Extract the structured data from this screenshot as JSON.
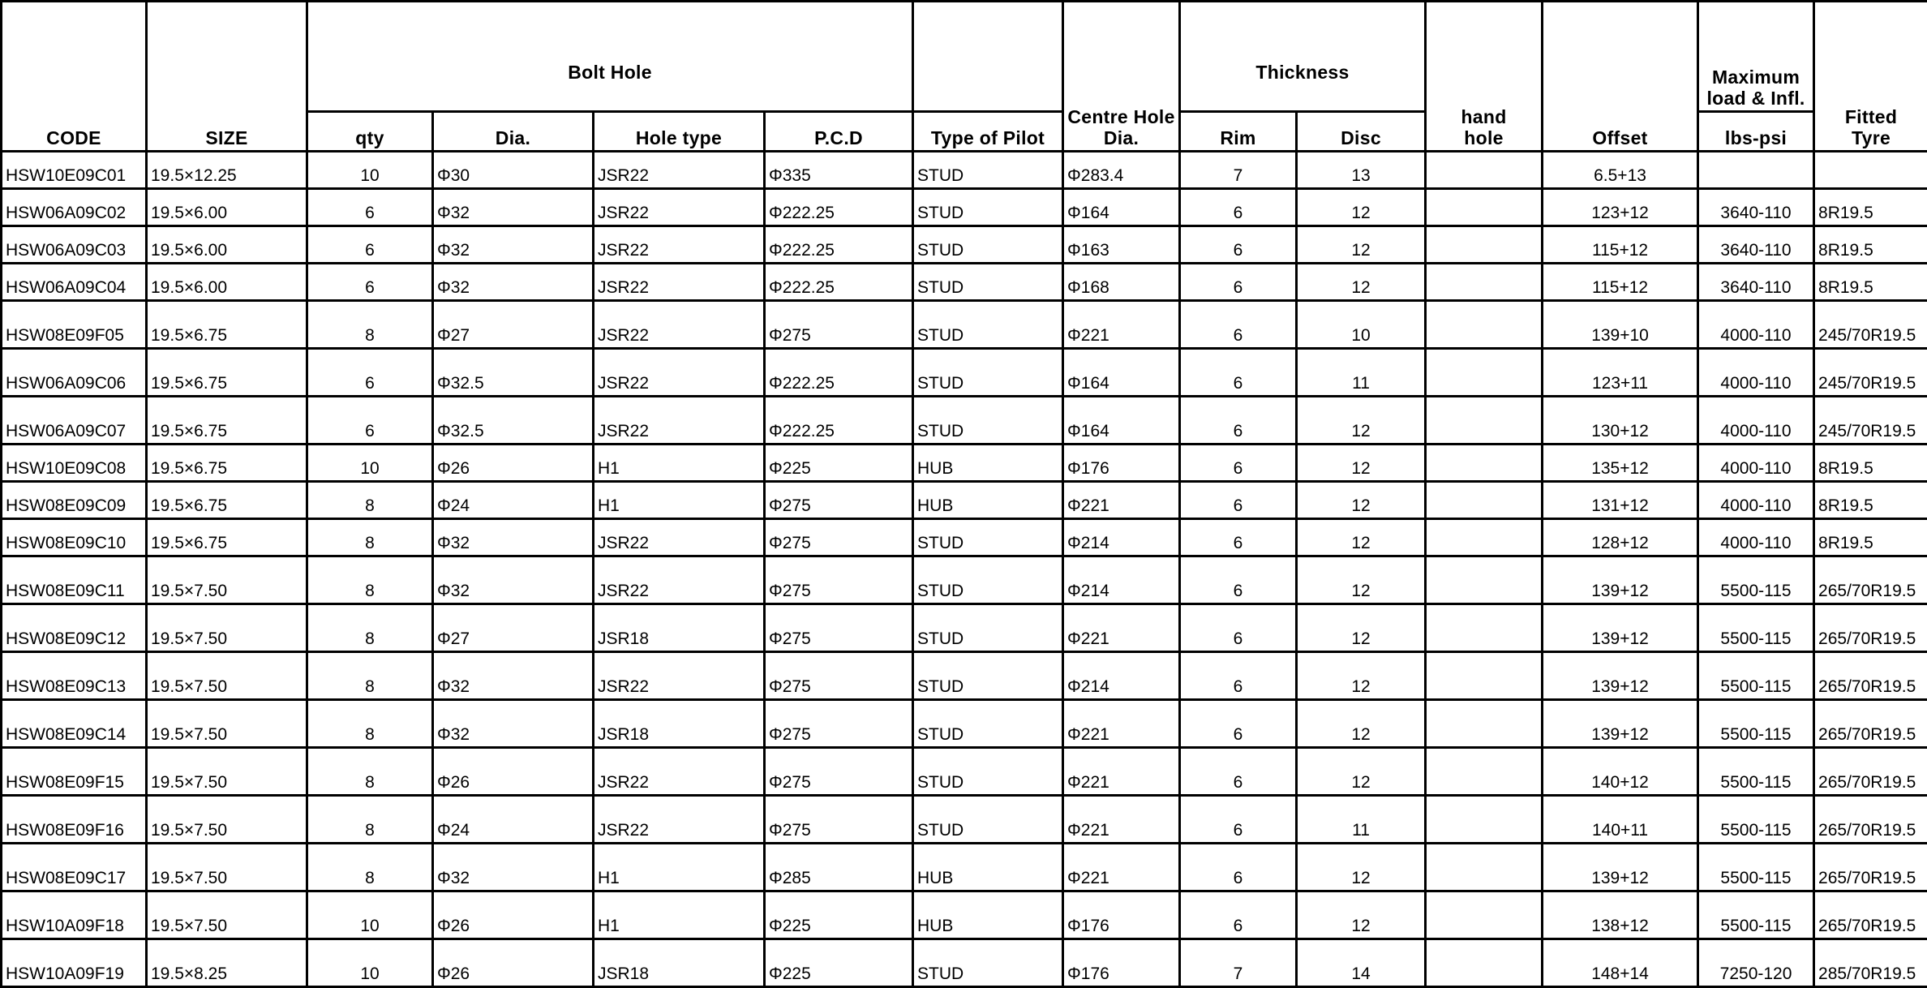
{
  "headers": {
    "code": "CODE",
    "size": "SIZE",
    "bolt_hole": "Bolt Hole",
    "qty": "qty",
    "dia": "Dia.",
    "hole_type": "Hole type",
    "pcd": "P.C.D",
    "type_of_pilot": "Type of Pilot",
    "centre_hole_dia": "Centre Hole Dia.",
    "thickness": "Thickness",
    "rim": "Rim",
    "disc": "Disc",
    "hand_hole": "hand hole",
    "offset": "Offset",
    "max_load": "Maximum load & Infl.",
    "lbs_psi": "lbs-psi",
    "fitted_tyre": "Fitted Tyre"
  },
  "rows": [
    {
      "code": "HSW10E09C01",
      "size": "19.5×12.25",
      "qty": "10",
      "dia": "Φ30",
      "hole_type": "JSR22",
      "pcd": "Φ335",
      "pilot": "STUD",
      "centre": "Φ283.4",
      "rim": "7",
      "disc": "13",
      "hand_hole": "",
      "offset": "6.5+13",
      "load": "",
      "tyre": ""
    },
    {
      "code": "HSW06A09C02",
      "size": "19.5×6.00",
      "qty": "6",
      "dia": "Φ32",
      "hole_type": "JSR22",
      "pcd": "Φ222.25",
      "pilot": "STUD",
      "centre": "Φ164",
      "rim": "6",
      "disc": "12",
      "hand_hole": "",
      "offset": "123+12",
      "load": "3640-110",
      "tyre": "8R19.5"
    },
    {
      "code": "HSW06A09C03",
      "size": "19.5×6.00",
      "qty": "6",
      "dia": "Φ32",
      "hole_type": "JSR22",
      "pcd": "Φ222.25",
      "pilot": "STUD",
      "centre": "Φ163",
      "rim": "6",
      "disc": "12",
      "hand_hole": "",
      "offset": "115+12",
      "load": "3640-110",
      "tyre": "8R19.5"
    },
    {
      "code": "HSW06A09C04",
      "size": "19.5×6.00",
      "qty": "6",
      "dia": "Φ32",
      "hole_type": "JSR22",
      "pcd": "Φ222.25",
      "pilot": "STUD",
      "centre": "Φ168",
      "rim": "6",
      "disc": "12",
      "hand_hole": "",
      "offset": "115+12",
      "load": "3640-110",
      "tyre": "8R19.5"
    },
    {
      "code": "HSW08E09F05",
      "size": "19.5×6.75",
      "qty": "8",
      "dia": "Φ27",
      "hole_type": "JSR22",
      "pcd": "Φ275",
      "pilot": "STUD",
      "centre": "Φ221",
      "rim": "6",
      "disc": "10",
      "hand_hole": "",
      "offset": "139+10",
      "load": "4000-110",
      "tyre": "245/70R19.5"
    },
    {
      "code": "HSW06A09C06",
      "size": "19.5×6.75",
      "qty": "6",
      "dia": "Φ32.5",
      "hole_type": "JSR22",
      "pcd": "Φ222.25",
      "pilot": "STUD",
      "centre": "Φ164",
      "rim": "6",
      "disc": "11",
      "hand_hole": "",
      "offset": "123+11",
      "load": "4000-110",
      "tyre": "245/70R19.5"
    },
    {
      "code": "HSW06A09C07",
      "size": "19.5×6.75",
      "qty": "6",
      "dia": "Φ32.5",
      "hole_type": "JSR22",
      "pcd": "Φ222.25",
      "pilot": "STUD",
      "centre": "Φ164",
      "rim": "6",
      "disc": "12",
      "hand_hole": "",
      "offset": "130+12",
      "load": "4000-110",
      "tyre": "245/70R19.5"
    },
    {
      "code": "HSW10E09C08",
      "size": "19.5×6.75",
      "qty": "10",
      "dia": "Φ26",
      "hole_type": "H1",
      "pcd": "Φ225",
      "pilot": "HUB",
      "centre": "Φ176",
      "rim": "6",
      "disc": "12",
      "hand_hole": "",
      "offset": "135+12",
      "load": "4000-110",
      "tyre": "8R19.5"
    },
    {
      "code": "HSW08E09C09",
      "size": "19.5×6.75",
      "qty": "8",
      "dia": "Φ24",
      "hole_type": "H1",
      "pcd": "Φ275",
      "pilot": "HUB",
      "centre": "Φ221",
      "rim": "6",
      "disc": "12",
      "hand_hole": "",
      "offset": "131+12",
      "load": "4000-110",
      "tyre": "8R19.5"
    },
    {
      "code": "HSW08E09C10",
      "size": "19.5×6.75",
      "qty": "8",
      "dia": "Φ32",
      "hole_type": "JSR22",
      "pcd": "Φ275",
      "pilot": "STUD",
      "centre": "Φ214",
      "rim": "6",
      "disc": "12",
      "hand_hole": "",
      "offset": "128+12",
      "load": "4000-110",
      "tyre": "8R19.5"
    },
    {
      "code": "HSW08E09C11",
      "size": "19.5×7.50",
      "qty": "8",
      "dia": "Φ32",
      "hole_type": "JSR22",
      "pcd": "Φ275",
      "pilot": "STUD",
      "centre": "Φ214",
      "rim": "6",
      "disc": "12",
      "hand_hole": "",
      "offset": "139+12",
      "load": "5500-115",
      "tyre": "265/70R19.5"
    },
    {
      "code": "HSW08E09C12",
      "size": "19.5×7.50",
      "qty": "8",
      "dia": "Φ27",
      "hole_type": "JSR18",
      "pcd": "Φ275",
      "pilot": "STUD",
      "centre": "Φ221",
      "rim": "6",
      "disc": "12",
      "hand_hole": "",
      "offset": "139+12",
      "load": "5500-115",
      "tyre": "265/70R19.5"
    },
    {
      "code": "HSW08E09C13",
      "size": "19.5×7.50",
      "qty": "8",
      "dia": "Φ32",
      "hole_type": "JSR22",
      "pcd": "Φ275",
      "pilot": "STUD",
      "centre": "Φ214",
      "rim": "6",
      "disc": "12",
      "hand_hole": "",
      "offset": "139+12",
      "load": "5500-115",
      "tyre": "265/70R19.5"
    },
    {
      "code": "HSW08E09C14",
      "size": "19.5×7.50",
      "qty": "8",
      "dia": "Φ32",
      "hole_type": "JSR18",
      "pcd": "Φ275",
      "pilot": "STUD",
      "centre": "Φ221",
      "rim": "6",
      "disc": "12",
      "hand_hole": "",
      "offset": "139+12",
      "load": "5500-115",
      "tyre": "265/70R19.5"
    },
    {
      "code": "HSW08E09F15",
      "size": "19.5×7.50",
      "qty": "8",
      "dia": "Φ26",
      "hole_type": "JSR22",
      "pcd": "Φ275",
      "pilot": "STUD",
      "centre": "Φ221",
      "rim": "6",
      "disc": "12",
      "hand_hole": "",
      "offset": "140+12",
      "load": "5500-115",
      "tyre": "265/70R19.5"
    },
    {
      "code": "HSW08E09F16",
      "size": "19.5×7.50",
      "qty": "8",
      "dia": "Φ24",
      "hole_type": "JSR22",
      "pcd": "Φ275",
      "pilot": "STUD",
      "centre": "Φ221",
      "rim": "6",
      "disc": "11",
      "hand_hole": "",
      "offset": "140+11",
      "load": "5500-115",
      "tyre": "265/70R19.5"
    },
    {
      "code": "HSW08E09C17",
      "size": "19.5×7.50",
      "qty": "8",
      "dia": "Φ32",
      "hole_type": "H1",
      "pcd": "Φ285",
      "pilot": "HUB",
      "centre": "Φ221",
      "rim": "6",
      "disc": "12",
      "hand_hole": "",
      "offset": "139+12",
      "load": "5500-115",
      "tyre": "265/70R19.5"
    },
    {
      "code": "HSW10A09F18",
      "size": "19.5×7.50",
      "qty": "10",
      "dia": "Φ26",
      "hole_type": "H1",
      "pcd": "Φ225",
      "pilot": "HUB",
      "centre": "Φ176",
      "rim": "6",
      "disc": "12",
      "hand_hole": "",
      "offset": "138+12",
      "load": "5500-115",
      "tyre": "265/70R19.5"
    },
    {
      "code": "HSW10A09F19",
      "size": "19.5×8.25",
      "qty": "10",
      "dia": "Φ26",
      "hole_type": "JSR18",
      "pcd": "Φ225",
      "pilot": "STUD",
      "centre": "Φ176",
      "rim": "7",
      "disc": "14",
      "hand_hole": "",
      "offset": "148+14",
      "load": "7250-120",
      "tyre": "285/70R19.5"
    }
  ]
}
